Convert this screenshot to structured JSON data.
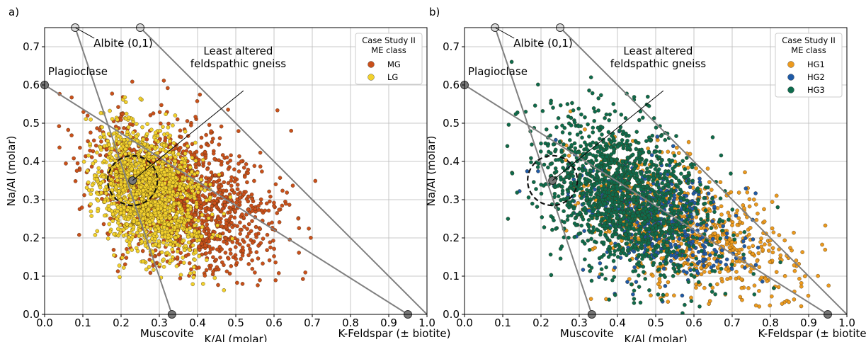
{
  "chart_data": [
    {
      "panel_label": "a)",
      "type": "scatter",
      "xlabel": "K/Al (molar)",
      "ylabel": "Na/Al (molar)",
      "xlim": [
        0.0,
        1.0
      ],
      "ylim": [
        0.0,
        0.75
      ],
      "xticks": [
        0.0,
        0.1,
        0.2,
        0.3,
        0.4,
        0.5,
        0.6,
        0.7,
        0.8,
        0.9,
        1.0
      ],
      "yticks": [
        0.0,
        0.1,
        0.2,
        0.3,
        0.4,
        0.5,
        0.6,
        0.7
      ],
      "grid": true,
      "legend": {
        "title_line1": "Case Study II",
        "title_line2": "ME class",
        "placement": "top-right",
        "entries": [
          {
            "label": "MG",
            "color": "#c9501b"
          },
          {
            "label": "LG",
            "color": "#f2d12c"
          }
        ]
      },
      "series": [
        {
          "name": "MG",
          "color": "#c9501b",
          "cloud": {
            "center": [
              0.36,
              0.31
            ],
            "spread": [
              0.12,
              0.09
            ],
            "count": 1400,
            "extent_x": [
              0.03,
              0.78
            ],
            "extent_y": [
              0.05,
              0.69
            ]
          }
        },
        {
          "name": "LG",
          "color": "#f2d12c",
          "cloud": {
            "center": [
              0.27,
              0.32
            ],
            "spread": [
              0.07,
              0.08
            ],
            "count": 1500,
            "extent_x": [
              0.1,
              0.5
            ],
            "extent_y": [
              0.0,
              0.62
            ]
          }
        }
      ],
      "reference_lines": [
        {
          "from": [
            0.0,
            0.6
          ],
          "to": [
            0.95,
            0.0
          ]
        },
        {
          "from": [
            0.08,
            0.75
          ],
          "to": [
            0.333,
            0.0
          ]
        },
        {
          "from": [
            0.25,
            0.75
          ],
          "to": [
            1.0,
            0.0
          ]
        }
      ],
      "mineral_points": [
        {
          "label": "Plagioclase",
          "x": 0.0,
          "y": 0.6,
          "fill": "#777777"
        },
        {
          "label": "Albite (0,1)",
          "x": 0.08,
          "y": 0.75,
          "fill": "#dddddd"
        },
        {
          "label": "",
          "x": 0.25,
          "y": 0.75,
          "fill": "#dddddd"
        },
        {
          "label": "Muscovite",
          "x": 0.333,
          "y": 0.0,
          "fill": "#777777"
        },
        {
          "label": "K-Feldspar (± biotite)",
          "x": 0.95,
          "y": 0.0,
          "fill": "#777777"
        }
      ],
      "annotation": {
        "text_line1": "Least altered",
        "text_line2": "feldspathic gneiss",
        "point": [
          0.23,
          0.35
        ],
        "circle_radius": 0.065
      }
    },
    {
      "panel_label": "b)",
      "type": "scatter",
      "xlabel": "K/Al (molar)",
      "ylabel": "Na/Al (molar)",
      "xlim": [
        0.0,
        1.0
      ],
      "ylim": [
        0.0,
        0.75
      ],
      "xticks": [
        0.0,
        0.1,
        0.2,
        0.3,
        0.4,
        0.5,
        0.6,
        0.7,
        0.8,
        0.9,
        1.0
      ],
      "yticks": [
        0.0,
        0.1,
        0.2,
        0.3,
        0.4,
        0.5,
        0.6,
        0.7
      ],
      "grid": true,
      "legend": {
        "title_line1": "Case Study II",
        "title_line2": "ME class",
        "placement": "top-right",
        "entries": [
          {
            "label": "HG1",
            "color": "#ec9a1e"
          },
          {
            "label": "HG2",
            "color": "#1f5aa6"
          },
          {
            "label": "HG3",
            "color": "#0e6b4d"
          }
        ]
      },
      "series": [
        {
          "name": "HG1",
          "color": "#ec9a1e",
          "cloud": {
            "center": [
              0.58,
              0.22
            ],
            "spread": [
              0.14,
              0.08
            ],
            "count": 800,
            "extent_x": [
              0.25,
              0.98
            ],
            "extent_y": [
              0.02,
              0.66
            ]
          }
        },
        {
          "name": "HG2",
          "color": "#1f5aa6",
          "cloud": {
            "center": [
              0.5,
              0.25
            ],
            "spread": [
              0.11,
              0.07
            ],
            "count": 500,
            "extent_x": [
              0.06,
              0.97
            ],
            "extent_y": [
              0.02,
              0.5
            ]
          }
        },
        {
          "name": "HG3",
          "color": "#0e6b4d",
          "cloud": {
            "center": [
              0.42,
              0.31
            ],
            "spread": [
              0.11,
              0.1
            ],
            "count": 1500,
            "extent_x": [
              0.05,
              0.9
            ],
            "extent_y": [
              0.0,
              0.67
            ]
          }
        }
      ],
      "reference_lines": [
        {
          "from": [
            0.0,
            0.6
          ],
          "to": [
            0.95,
            0.0
          ]
        },
        {
          "from": [
            0.08,
            0.75
          ],
          "to": [
            0.333,
            0.0
          ]
        },
        {
          "from": [
            0.25,
            0.75
          ],
          "to": [
            1.0,
            0.0
          ]
        }
      ],
      "mineral_points": [
        {
          "label": "Plagioclase",
          "x": 0.0,
          "y": 0.6,
          "fill": "#777777"
        },
        {
          "label": "Albite (0,1)",
          "x": 0.08,
          "y": 0.75,
          "fill": "#dddddd"
        },
        {
          "label": "",
          "x": 0.25,
          "y": 0.75,
          "fill": "#dddddd"
        },
        {
          "label": "Muscovite",
          "x": 0.333,
          "y": 0.0,
          "fill": "#777777"
        },
        {
          "label": "K-Feldspar (± biotite)",
          "x": 0.95,
          "y": 0.0,
          "fill": "#777777"
        }
      ],
      "annotation": {
        "text_line1": "Least altered",
        "text_line2": "feldspathic gneiss",
        "point": [
          0.23,
          0.35
        ],
        "circle_radius": 0.065
      }
    }
  ]
}
